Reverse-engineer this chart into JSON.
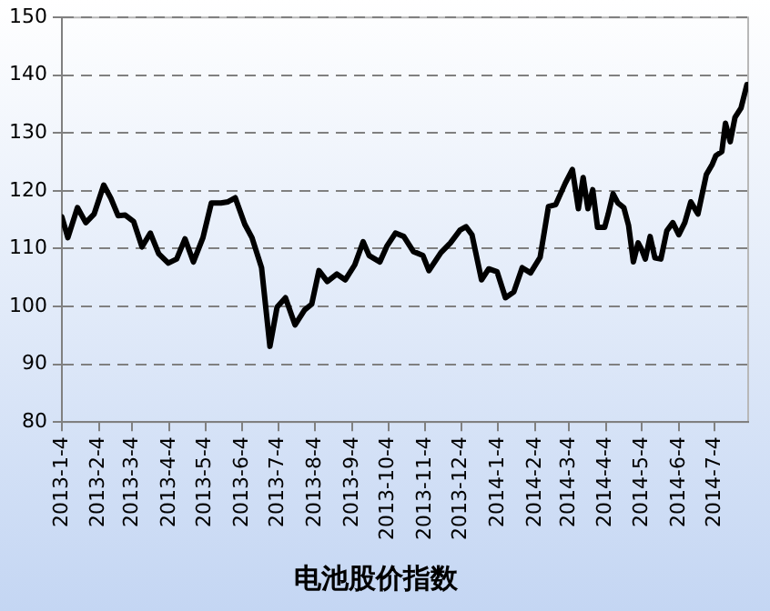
{
  "chart_data": {
    "type": "line",
    "title": "电池股价指数",
    "x": [
      "2013-01-04",
      "2013-01-09",
      "2013-01-17",
      "2013-01-24",
      "2013-01-31",
      "2013-02-08",
      "2013-02-14",
      "2013-02-20",
      "2013-02-26",
      "2013-03-05",
      "2013-03-12",
      "2013-03-19",
      "2013-03-26",
      "2013-04-03",
      "2013-04-10",
      "2013-04-17",
      "2013-04-24",
      "2013-05-02",
      "2013-05-09",
      "2013-05-17",
      "2013-05-23",
      "2013-05-29",
      "2013-06-06",
      "2013-06-12",
      "2013-06-20",
      "2013-06-27",
      "2013-07-03",
      "2013-07-10",
      "2013-07-18",
      "2013-07-26",
      "2013-08-01",
      "2013-08-07",
      "2013-08-14",
      "2013-08-22",
      "2013-08-29",
      "2013-09-06",
      "2013-09-13",
      "2013-09-18",
      "2013-09-27",
      "2013-10-03",
      "2013-10-10",
      "2013-10-17",
      "2013-10-25",
      "2013-11-02",
      "2013-11-07",
      "2013-11-17",
      "2013-11-25",
      "2013-12-03",
      "2013-12-08",
      "2013-12-13",
      "2013-12-21",
      "2013-12-27",
      "2014-01-03",
      "2014-01-10",
      "2014-01-17",
      "2014-01-24",
      "2014-01-31",
      "2014-02-08",
      "2014-02-15",
      "2014-02-21",
      "2014-03-01",
      "2014-03-07",
      "2014-03-12",
      "2014-03-16",
      "2014-03-20",
      "2014-03-24",
      "2014-03-28",
      "2014-04-03",
      "2014-04-06",
      "2014-04-10",
      "2014-04-14",
      "2014-04-19",
      "2014-04-23",
      "2014-04-27",
      "2014-05-01",
      "2014-05-04",
      "2014-05-07",
      "2014-05-11",
      "2014-05-15",
      "2014-05-20",
      "2014-05-25",
      "2014-05-30",
      "2014-06-04",
      "2014-06-09",
      "2014-06-14",
      "2014-06-20",
      "2014-06-27",
      "2014-07-02",
      "2014-07-05",
      "2014-07-10",
      "2014-07-13",
      "2014-07-17",
      "2014-07-21",
      "2014-07-26",
      "2014-07-31"
    ],
    "values": [
      115.5,
      111.9,
      117.1,
      114.5,
      116.0,
      121.0,
      118.7,
      115.7,
      115.8,
      114.7,
      110.3,
      112.7,
      109.1,
      107.5,
      108.2,
      111.7,
      107.7,
      111.9,
      117.9,
      117.9,
      118.1,
      118.8,
      114.2,
      111.9,
      106.7,
      93.1,
      99.9,
      101.5,
      96.8,
      99.4,
      100.4,
      106.2,
      104.3,
      105.6,
      104.6,
      107.2,
      111.2,
      108.8,
      107.7,
      110.5,
      112.7,
      112.1,
      109.5,
      108.8,
      106.2,
      109.3,
      111.0,
      113.2,
      113.8,
      112.4,
      104.6,
      106.5,
      106.0,
      101.5,
      102.5,
      106.7,
      105.8,
      108.5,
      117.3,
      117.6,
      121.3,
      123.7,
      116.9,
      122.3,
      116.9,
      120.2,
      113.7,
      113.7,
      116.0,
      119.5,
      117.9,
      117.1,
      114.0,
      107.7,
      111.0,
      109.8,
      108.2,
      112.1,
      108.4,
      108.2,
      113.1,
      114.5,
      112.4,
      114.5,
      118.1,
      116.0,
      122.8,
      124.6,
      126.1,
      126.8,
      131.7,
      128.5,
      132.7,
      134.3,
      138.4
    ],
    "color": "#000000",
    "xlim": [
      "2013-01-04",
      "2014-08-01"
    ],
    "xticks": [
      {
        "value": "2013-01-04",
        "label": "2013-1-4"
      },
      {
        "value": "2013-02-04",
        "label": "2013-2-4"
      },
      {
        "value": "2013-03-04",
        "label": "2013-3-4"
      },
      {
        "value": "2013-04-04",
        "label": "2013-4-4"
      },
      {
        "value": "2013-05-04",
        "label": "2013-5-4"
      },
      {
        "value": "2013-06-04",
        "label": "2013-6-4"
      },
      {
        "value": "2013-07-04",
        "label": "2013-7-4"
      },
      {
        "value": "2013-08-04",
        "label": "2013-8-4"
      },
      {
        "value": "2013-09-04",
        "label": "2013-9-4"
      },
      {
        "value": "2013-10-04",
        "label": "2013-10-4"
      },
      {
        "value": "2013-11-04",
        "label": "2013-11-4"
      },
      {
        "value": "2013-12-04",
        "label": "2013-12-4"
      },
      {
        "value": "2014-01-04",
        "label": "2014-1-4"
      },
      {
        "value": "2014-02-04",
        "label": "2014-2-4"
      },
      {
        "value": "2014-03-04",
        "label": "2014-3-4"
      },
      {
        "value": "2014-04-04",
        "label": "2014-4-4"
      },
      {
        "value": "2014-05-04",
        "label": "2014-5-4"
      },
      {
        "value": "2014-06-04",
        "label": "2014-6-4"
      },
      {
        "value": "2014-07-04",
        "label": "2014-7-4"
      }
    ],
    "ylim": [
      80,
      150
    ],
    "yticks": [
      80,
      90,
      100,
      110,
      120,
      130,
      140,
      150
    ],
    "grid": "y"
  }
}
